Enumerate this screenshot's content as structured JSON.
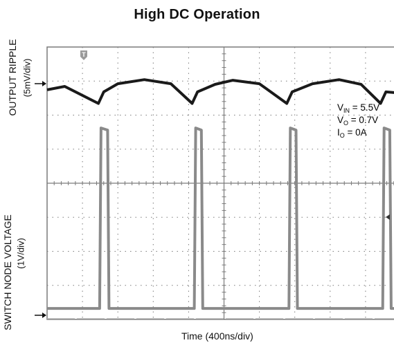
{
  "title": "High DC Operation",
  "y_label_top": "OUTPUT RIPPLE",
  "y_units_top": "(5mV/div)",
  "y_label_bottom": "SWITCH NODE VOLTAGE",
  "y_units_bottom": "(1V/div)",
  "x_label": "Time (400ns/div)",
  "trigger_marker": "T",
  "annotations": {
    "vin": {
      "sym": "V",
      "sub": "IN",
      "val": " = 5.5V"
    },
    "vo": {
      "sym": "V",
      "sub": "O",
      "val": " = 0.7V"
    },
    "io": {
      "sym": "I",
      "sub": "O",
      "val": " = 0A"
    }
  },
  "colors": {
    "grid": "#7a7a7a",
    "trace": "#1a1a1a",
    "pulse": "#8a8a8a"
  },
  "chart_data": {
    "type": "line",
    "title": "High DC Operation",
    "xlabel": "Time (400ns/div)",
    "x_divisions": 10,
    "y_divisions": 8,
    "grid": true,
    "x_range_ns": [
      0,
      4000
    ],
    "series": [
      {
        "name": "OUTPUT RIPPLE",
        "scale": "5mV/div",
        "points_ns_mv": [
          [
            0,
            -0.5
          ],
          [
            200,
            0
          ],
          [
            580,
            -2.5
          ],
          [
            640,
            -0.8
          ],
          [
            800,
            0.4
          ],
          [
            1100,
            1.0
          ],
          [
            1400,
            0.4
          ],
          [
            1640,
            -2.5
          ],
          [
            1700,
            -0.8
          ],
          [
            1900,
            0.3
          ],
          [
            2100,
            0.9
          ],
          [
            2400,
            0.4
          ],
          [
            2710,
            -2.5
          ],
          [
            2770,
            -0.8
          ],
          [
            3000,
            0.4
          ],
          [
            3300,
            1.0
          ],
          [
            3550,
            0.3
          ],
          [
            3770,
            -2.5
          ],
          [
            3830,
            -0.8
          ],
          [
            4000,
            -1.0
          ]
        ]
      },
      {
        "name": "SWITCH NODE VOLTAGE",
        "scale": "1V/div",
        "off_level_v": 0.2,
        "on_level_v": 5.5,
        "pulses": [
          {
            "start_ns": 610,
            "end_ns": 700
          },
          {
            "start_ns": 1680,
            "end_ns": 1760
          },
          {
            "start_ns": 2750,
            "end_ns": 2830
          },
          {
            "start_ns": 3810,
            "end_ns": 3890
          }
        ]
      }
    ]
  }
}
